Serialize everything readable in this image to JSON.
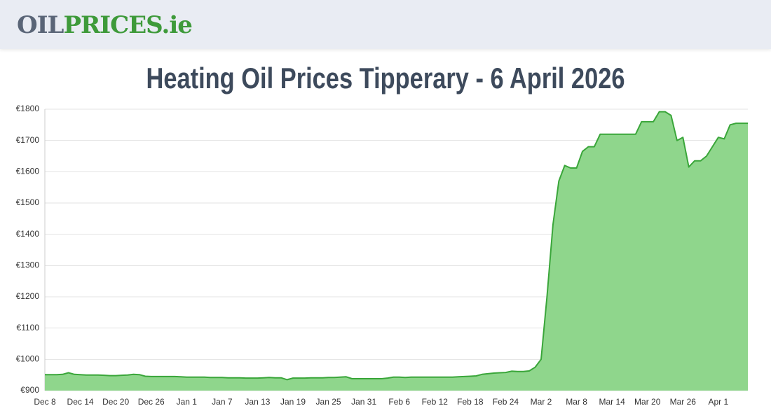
{
  "header": {
    "logo_part1": "OIL",
    "logo_part2": "PRICES.ie"
  },
  "chart_data": {
    "type": "area",
    "title": "Heating Oil Prices Tipperary - 6 April 2026",
    "categories": [
      "Dec 8",
      null,
      null,
      null,
      null,
      null,
      "Dec 14",
      null,
      null,
      null,
      null,
      null,
      "Dec 20",
      null,
      null,
      null,
      null,
      null,
      "Dec 26",
      null,
      null,
      null,
      null,
      null,
      "Jan 1",
      null,
      null,
      null,
      null,
      null,
      "Jan 7",
      null,
      null,
      null,
      null,
      null,
      "Jan 13",
      null,
      null,
      null,
      null,
      null,
      "Jan 19",
      null,
      null,
      null,
      null,
      null,
      "Jan 25",
      null,
      null,
      null,
      null,
      null,
      "Jan 31",
      null,
      null,
      null,
      null,
      null,
      "Feb 6",
      null,
      null,
      null,
      null,
      null,
      "Feb 12",
      null,
      null,
      null,
      null,
      null,
      "Feb 18",
      null,
      null,
      null,
      null,
      null,
      "Feb 24",
      null,
      null,
      null,
      null,
      null,
      "Mar 2",
      null,
      null,
      null,
      null,
      null,
      "Mar 8",
      null,
      null,
      null,
      null,
      null,
      "Mar 14",
      null,
      null,
      null,
      null,
      null,
      "Mar 20",
      null,
      null,
      null,
      null,
      null,
      "Mar 26",
      null,
      null,
      null,
      null,
      null,
      "Apr 1",
      null,
      null,
      null,
      null,
      null
    ],
    "series": [
      {
        "color": "#3aa63a",
        "fill": "#8fd68c",
        "values": [
          951,
          951,
          951,
          952,
          957,
          952,
          951,
          950,
          950,
          950,
          949,
          948,
          948,
          949,
          950,
          952,
          951,
          946,
          945,
          945,
          945,
          945,
          945,
          944,
          943,
          943,
          943,
          943,
          942,
          942,
          942,
          941,
          941,
          941,
          940,
          940,
          940,
          941,
          942,
          941,
          941,
          935,
          940,
          940,
          940,
          941,
          941,
          941,
          942,
          942,
          943,
          944,
          938,
          938,
          938,
          938,
          938,
          938,
          940,
          943,
          943,
          942,
          943,
          943,
          943,
          943,
          943,
          943,
          943,
          943,
          944,
          945,
          946,
          947,
          952,
          954,
          956,
          957,
          958,
          962,
          961,
          961,
          963,
          975,
          1000,
          1200,
          1430,
          1570,
          1620,
          1612,
          1612,
          1665,
          1680,
          1680,
          1720,
          1720,
          1720,
          1720,
          1720,
          1720,
          1720,
          1760,
          1760,
          1760,
          1792,
          1792,
          1780,
          1700,
          1710,
          1615,
          1635,
          1635,
          1650,
          1680,
          1710,
          1705,
          1750,
          1755,
          1755,
          1755
        ]
      }
    ],
    "ylim": [
      900,
      1800
    ],
    "yticks": [
      {
        "value": 900,
        "label": "€900"
      },
      {
        "value": 1000,
        "label": "€1000"
      },
      {
        "value": 1100,
        "label": "€1100"
      },
      {
        "value": 1200,
        "label": "€1200"
      },
      {
        "value": 1300,
        "label": "€1300"
      },
      {
        "value": 1400,
        "label": "€1400"
      },
      {
        "value": 1500,
        "label": "€1500"
      },
      {
        "value": 1600,
        "label": "€1600"
      },
      {
        "value": 1700,
        "label": "€1700"
      },
      {
        "value": 1800,
        "label": "€1800"
      }
    ],
    "grid": true
  }
}
